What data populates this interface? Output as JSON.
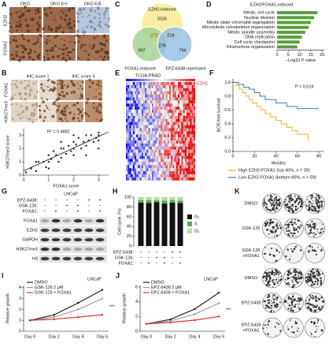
{
  "letters": [
    "A",
    "B",
    "C",
    "D",
    "E",
    "F",
    "G",
    "H",
    "I",
    "J",
    "K"
  ],
  "panel_a": {
    "columns": [
      "DKO",
      "DKO E/+",
      "DKO E/E"
    ],
    "rows": [
      "EZH2",
      "FOXA1"
    ]
  },
  "panel_b_images": {
    "columns": [
      "IHC score 1",
      "IHC score 3"
    ],
    "rows": [
      "FOXA1",
      "H3K27me3"
    ]
  },
  "panel_c": {
    "sets": [
      {
        "label": "EZH2-induced",
        "color": "#f6e98c"
      },
      {
        "label": "FOXA1-induced",
        "color": "#9fd18f"
      },
      {
        "label": "EPZ-6438-repressed",
        "color": "#94bde3"
      }
    ],
    "counts": [
      2026,
      272,
      214,
      276,
      997,
      794
    ]
  },
  "panel_e": {
    "title": "TCGA-PRAD",
    "gene": "EZH2"
  },
  "panel_g": {
    "cell_line": "LNCaP",
    "treatments": [
      {
        "name": "EPZ-6438:",
        "signs": [
          "−",
          "−",
          "−",
          "−",
          "+",
          "+"
        ]
      },
      {
        "name": "GSK-126:",
        "signs": [
          "−",
          "−",
          "+",
          "+",
          "−",
          "−"
        ]
      },
      {
        "name": "FOXA1:",
        "signs": [
          "−",
          "+",
          "−",
          "+",
          "−",
          "+"
        ]
      }
    ],
    "bands": [
      "FOXA1",
      "EZH2",
      "GAPDH",
      "H3K27me3",
      "H3"
    ]
  },
  "panel_k": {
    "labels": [
      [
        "DMSO"
      ],
      [
        "GSK-126"
      ],
      [
        "GSK-126",
        "+FOXA1"
      ],
      [
        "DMSO"
      ],
      [
        "EPZ-6438"
      ],
      [
        "EPZ-6438",
        "+FOXA1"
      ]
    ]
  },
  "chart_data": [
    {
      "type": "scatter",
      "annotation": "R² = 0.4882",
      "x_label": "FOXA1 score",
      "y_label": "H3K27me3 score",
      "x": [
        0.1,
        0.3,
        0.5,
        0.6,
        0.8,
        0.9,
        1.0,
        1.0,
        1.1,
        1.2,
        1.3,
        1.4,
        1.5,
        1.5,
        1.6,
        1.7,
        1.8,
        1.9,
        2.0,
        2.0,
        2.0,
        2.1,
        2.2,
        2.3,
        2.4,
        2.5,
        2.5,
        2.6,
        2.7,
        2.8,
        2.9,
        3.0,
        3.0,
        3.0,
        1.0,
        2.0,
        2.5,
        1.5,
        0.5,
        3.0
      ],
      "values": [
        0.2,
        0.5,
        0.3,
        1.0,
        1.0,
        0.6,
        1.5,
        1.0,
        1.2,
        1.8,
        1.5,
        1.0,
        2.0,
        1.3,
        2.0,
        1.6,
        2.2,
        1.8,
        2.5,
        2.0,
        1.5,
        2.3,
        2.8,
        2.0,
        2.5,
        3.0,
        2.2,
        2.6,
        3.0,
        2.5,
        2.8,
        3.0,
        2.6,
        2.0,
        0.5,
        3.0,
        1.5,
        2.5,
        1.0,
        3.2
      ],
      "color": "#111111",
      "xlim": [
        0,
        3.4
      ],
      "ylim": [
        0,
        3.5
      ],
      "xticks": [
        0,
        1,
        2,
        3
      ],
      "yticks": [
        0,
        1,
        2,
        3
      ]
    },
    {
      "type": "hbar",
      "title": "EZH2/FOXA1-induced",
      "x_label": "−Log10 P value",
      "categories": [
        "Mitotic cell cycle",
        "Nuclear division",
        "Mitotic sister chromatid segregation",
        "Microtubule cytoskeleton organization",
        "Mitotic spindle assembly",
        "DNA replication",
        "Cell cycle checkpoint",
        "Kinetochore organization"
      ],
      "values": [
        18,
        16.5,
        15,
        14,
        12.5,
        11,
        10,
        9
      ],
      "color": "#5a9e3e",
      "xlim": [
        0,
        21
      ],
      "xticks": [
        0,
        5,
        10,
        15,
        20
      ]
    },
    {
      "type": "step",
      "annotation": "P = 0.019",
      "x_label": "Months",
      "y_label": "BCR-free survival",
      "series": [
        {
          "name": "High EZH2-FOXA1 (top 40%, n = 39)",
          "color": "#f2b230",
          "x": [
            0,
            3,
            6,
            9,
            12,
            15,
            18,
            22,
            26,
            30,
            35,
            40,
            45,
            50,
            55,
            60,
            70
          ],
          "values": [
            1,
            0.95,
            0.9,
            0.85,
            0.8,
            0.75,
            0.7,
            0.65,
            0.6,
            0.55,
            0.5,
            0.45,
            0.4,
            0.35,
            0.3,
            0.25,
            0.15
          ]
        },
        {
          "name": "Low EZH2-FOXA1 (bottom 60%, n = 59)",
          "color": "#3d7bb8",
          "x": [
            0,
            5,
            10,
            15,
            20,
            25,
            30,
            40,
            50,
            60,
            80
          ],
          "values": [
            1,
            0.97,
            0.93,
            0.9,
            0.85,
            0.8,
            0.75,
            0.7,
            0.65,
            0.62,
            0.62
          ]
        }
      ],
      "xlim": [
        0,
        85
      ],
      "ylim": [
        0,
        1.05
      ],
      "xticks": [
        0,
        20,
        40,
        60,
        80
      ],
      "yticks": [
        {
          "value": 0,
          "label": "0.0"
        },
        0.2,
        0.4,
        0.6,
        0.8,
        {
          "value": 1,
          "label": "1.0"
        }
      ]
    },
    {
      "type": "stacked",
      "y_label": "Cell cycle (%)",
      "series": [
        {
          "name": "G₁",
          "color": "#111111",
          "values": [
            89,
            88,
            90,
            87,
            89,
            88
          ]
        },
        {
          "name": "S",
          "color": "#4caf50",
          "values": [
            5,
            6,
            4,
            6,
            5,
            5
          ]
        },
        {
          "name": "G₂",
          "color": "#b5dc9c",
          "values": [
            6,
            6,
            6,
            7,
            6,
            7
          ]
        }
      ],
      "treatments": [
        {
          "name": "EPZ-6438:",
          "signs": [
            "−",
            "−",
            "−",
            "−",
            "+",
            "+"
          ]
        },
        {
          "name": "GSK-126:",
          "signs": [
            "−",
            "−",
            "+",
            "+",
            "−",
            "−"
          ]
        },
        {
          "name": "FOXA1:",
          "signs": [
            "−",
            "+",
            "−",
            "+",
            "−",
            "+"
          ]
        }
      ],
      "ylim": [
        0,
        100
      ],
      "yticks": [
        0,
        20,
        40,
        60,
        80,
        100
      ]
    },
    {
      "type": "line",
      "title": "LNCaP",
      "y_label": "Relative growth",
      "annotation": "***",
      "categories": [
        "Day 0",
        "Day 2",
        "Day 4",
        "Day 6"
      ],
      "series": [
        {
          "name": "DMSO",
          "color": "#111111",
          "values": [
            1,
            1.5,
            2.6,
            3.8
          ]
        },
        {
          "name": "GSK-126 2 μM",
          "color": "#999999",
          "values": [
            1,
            1.3,
            2.0,
            3.0
          ]
        },
        {
          "name": "GSK-126 + FOXA1",
          "color": "#e02020",
          "values": [
            1,
            1.1,
            1.3,
            1.5
          ]
        }
      ],
      "ylim": [
        0,
        4.2
      ],
      "yticks": [
        0,
        1,
        2,
        3,
        4
      ]
    },
    {
      "type": "line",
      "title": "LNCaP",
      "y_label": "Relative growth",
      "annotation": "***",
      "categories": [
        "Day 0",
        "Day 2",
        "Day 4",
        "Day 6"
      ],
      "series": [
        {
          "name": "DMSO",
          "color": "#111111",
          "values": [
            1,
            1.6,
            3.0,
            5.2
          ]
        },
        {
          "name": "EPZ-6438 2 μM",
          "color": "#999999",
          "values": [
            1,
            1.4,
            2.3,
            3.8
          ]
        },
        {
          "name": "EPZ-6438 + FOXA1",
          "color": "#e02020",
          "values": [
            1,
            1.2,
            1.5,
            2.0
          ]
        }
      ],
      "ylim": [
        0,
        6.2
      ],
      "yticks": [
        0,
        2,
        4,
        6
      ]
    }
  ]
}
